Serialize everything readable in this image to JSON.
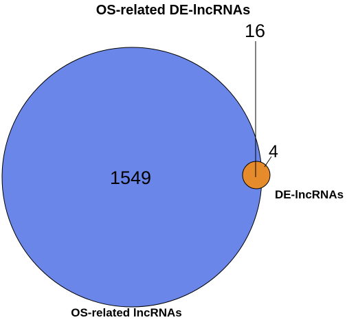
{
  "title": "OS-related DE-lncRNAs",
  "sets": [
    {
      "label": "OS-related lncRNAs",
      "only_count": "1549",
      "color": "#6a86e8"
    },
    {
      "label": "DE-lncRNAs",
      "only_count": "4",
      "color": "#e58b2c"
    }
  ],
  "intersection_count": "16",
  "colors": {
    "outline": "#000000",
    "background": "#ffffff"
  }
}
